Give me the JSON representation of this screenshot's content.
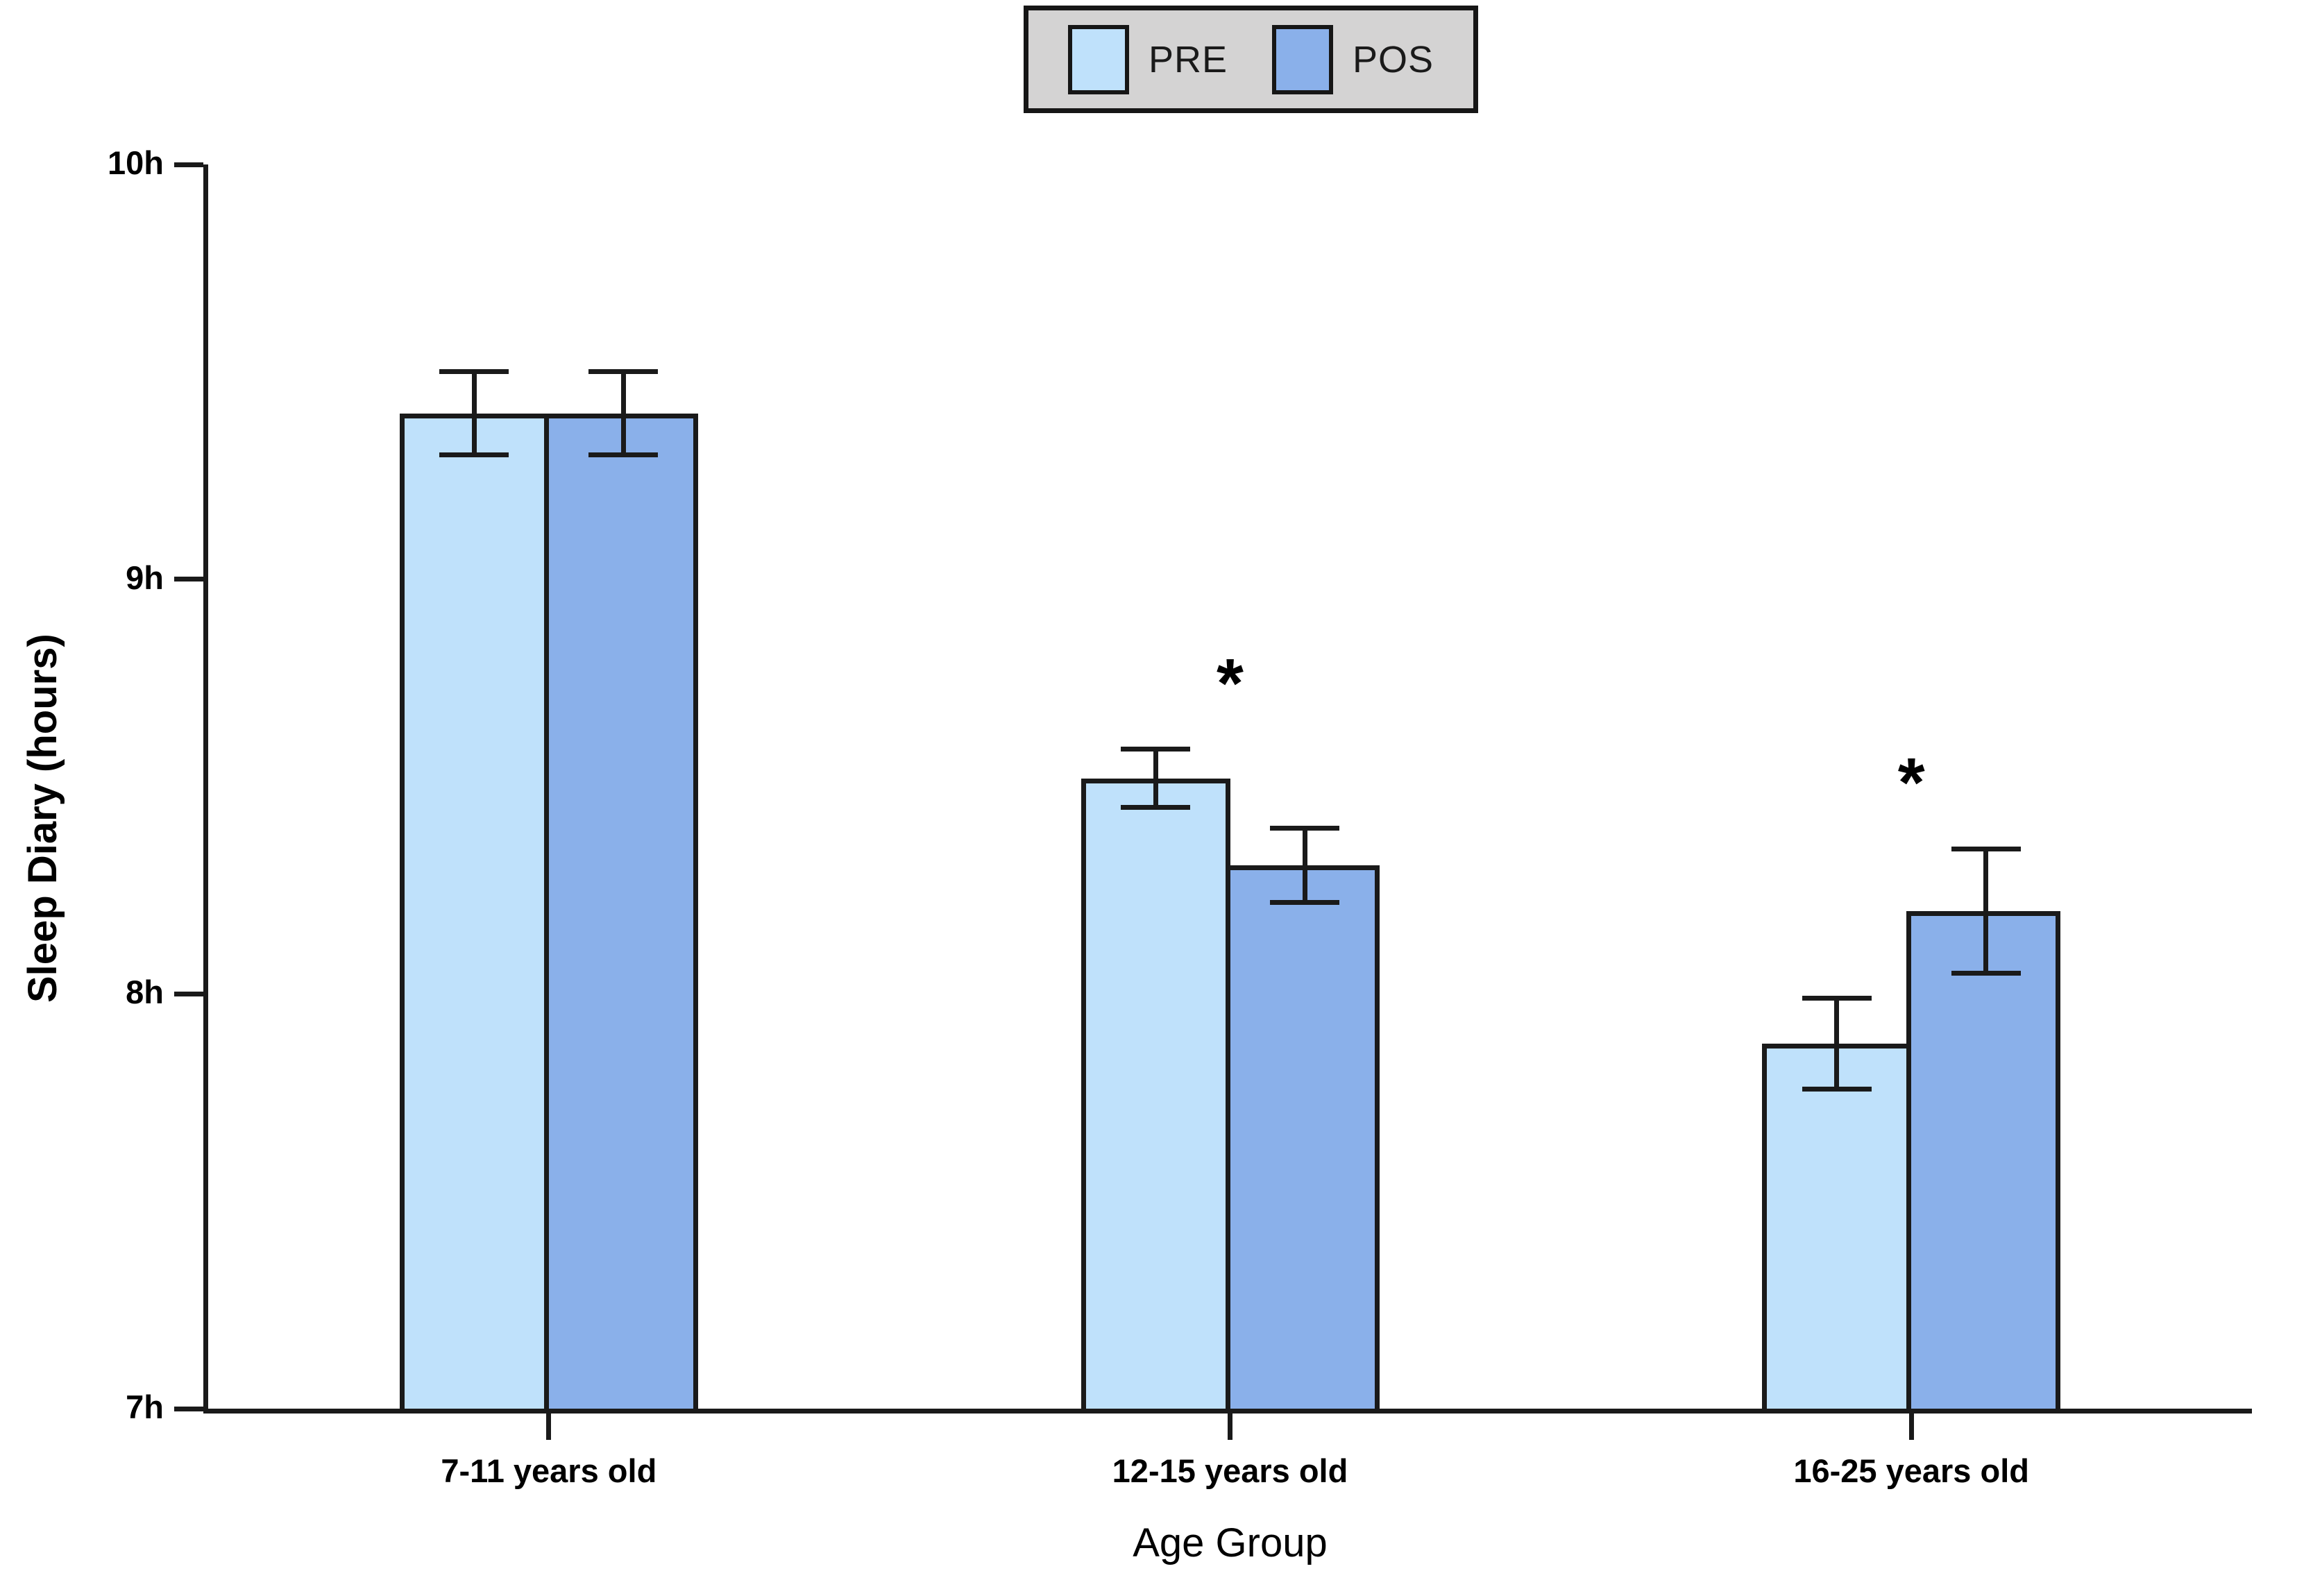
{
  "figure": {
    "background": "#ffffff"
  },
  "legend": {
    "position": "top-center",
    "background": "#d4d3d3",
    "border_color": "#161616",
    "entries": [
      {
        "label": "PRE",
        "color": "#bfe1fb"
      },
      {
        "label": "POS",
        "color": "#8ab0ea"
      }
    ]
  },
  "chart_data": {
    "type": "bar",
    "title": "",
    "xlabel": "Age Group",
    "ylabel": "Sleep Diary (hours)",
    "categories": [
      "7-11 years old",
      "12-15 years old",
      "16-25 years old"
    ],
    "series": [
      {
        "name": "PRE",
        "color": "#bfe1fb",
        "values": [
          9.4,
          8.52,
          7.88
        ],
        "error_plus": [
          0.1,
          0.07,
          0.11
        ],
        "error_minus": [
          0.1,
          0.07,
          0.11
        ]
      },
      {
        "name": "POS",
        "color": "#8ab0ea",
        "values": [
          9.4,
          8.31,
          8.2
        ],
        "error_plus": [
          0.1,
          0.09,
          0.15
        ],
        "error_minus": [
          0.1,
          0.09,
          0.15
        ]
      }
    ],
    "significance_markers": [
      "",
      "*",
      "*"
    ],
    "ylim": [
      7,
      10
    ],
    "yticks": [
      {
        "value": 7,
        "label": "7h"
      },
      {
        "value": 8,
        "label": "8h"
      },
      {
        "value": 9,
        "label": "9h"
      },
      {
        "value": 10,
        "label": "10h"
      }
    ],
    "grid": false,
    "error_bars": true,
    "legend_position": "top-center",
    "axis_color": "#1a1a1a"
  }
}
